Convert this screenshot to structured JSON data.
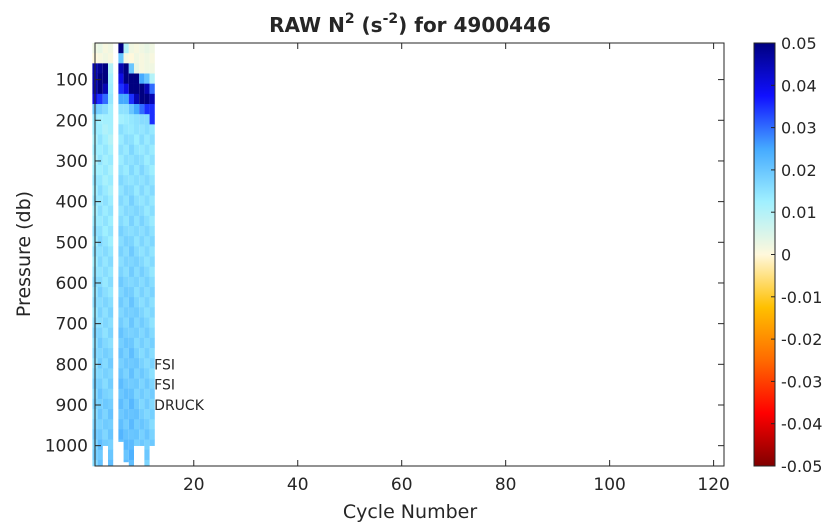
{
  "chart_data": {
    "type": "heatmap",
    "title": {
      "prefix": "RAW N",
      "sup1": "2",
      "mid": " (s",
      "sup2": "-2",
      "suffix": ") for 4900446"
    },
    "xlabel": "Cycle Number",
    "ylabel": "Pressure (db)",
    "xlim": [
      1,
      122
    ],
    "ylim": [
      1050,
      10
    ],
    "xticks": [
      20,
      40,
      60,
      80,
      100,
      120
    ],
    "yticks": [
      100,
      200,
      300,
      400,
      500,
      600,
      700,
      800,
      900,
      1000
    ],
    "colorbar": {
      "clim": [
        -0.05,
        0.05
      ],
      "ticks": [
        -0.05,
        -0.04,
        -0.03,
        -0.02,
        -0.01,
        0,
        0.01,
        0.02,
        0.03,
        0.04,
        0.05
      ],
      "tick_labels": [
        "-0.05",
        "-0.04",
        "-0.03",
        "-0.02",
        "-0.01",
        "0",
        "0.01",
        "0.02",
        "0.03",
        "0.04",
        "0.05"
      ]
    },
    "annotations": [
      {
        "text": "FSI",
        "x": 12,
        "y": 800
      },
      {
        "text": "FSI",
        "x": 12,
        "y": 850
      },
      {
        "text": "DRUCK",
        "x": 12,
        "y": 900
      }
    ],
    "grid": false,
    "cycles": [
      {
        "x": 1,
        "pmax": 1050,
        "top": [
          0.002,
          0.0,
          0.045,
          0.045,
          0.045,
          0.04,
          0.02,
          0.014
        ],
        "mid": 0.012,
        "deep": 0.018
      },
      {
        "x": 2,
        "pmax": 1050,
        "top": [
          0.003,
          0.001,
          0.048,
          0.05,
          0.05,
          0.035,
          0.018,
          0.012
        ],
        "mid": 0.013,
        "deep": 0.02
      },
      {
        "x": 3,
        "pmax": 1000,
        "top": [
          0.001,
          0.002,
          0.05,
          0.05,
          0.045,
          0.03,
          0.016,
          0.012
        ],
        "mid": 0.012,
        "deep": 0.019
      },
      {
        "x": 4,
        "pmax": 1050,
        "top": [
          0.002,
          0.001,
          0.01,
          0.012,
          0.013,
          0.014,
          0.012,
          0.012
        ],
        "mid": 0.011,
        "deep": 0.02
      },
      {
        "x": 6,
        "pmax": 990,
        "top": [
          0.05,
          0.02,
          0.045,
          0.04,
          0.035,
          0.025,
          0.015,
          0.012
        ],
        "mid": 0.014,
        "deep": 0.022
      },
      {
        "x": 7,
        "pmax": 1040,
        "top": [
          0.01,
          0.001,
          0.05,
          0.05,
          0.04,
          0.025,
          0.015,
          0.013
        ],
        "mid": 0.014,
        "deep": 0.021
      },
      {
        "x": 8,
        "pmax": 1050,
        "top": [
          0.002,
          0.0,
          0.02,
          0.05,
          0.05,
          0.035,
          0.02,
          0.014
        ],
        "mid": 0.015,
        "deep": 0.022
      },
      {
        "x": 9,
        "pmax": 1000,
        "top": [
          0.001,
          0.002,
          0.003,
          0.05,
          0.05,
          0.045,
          0.025,
          0.015
        ],
        "mid": 0.014,
        "deep": 0.02
      },
      {
        "x": 10,
        "pmax": 1000,
        "top": [
          0.002,
          0.001,
          0.001,
          0.025,
          0.05,
          0.05,
          0.03,
          0.016
        ],
        "mid": 0.015,
        "deep": 0.019
      },
      {
        "x": 11,
        "pmax": 1050,
        "top": [
          0.003,
          0.002,
          0.002,
          0.02,
          0.045,
          0.05,
          0.035,
          0.016
        ],
        "mid": 0.014,
        "deep": 0.019
      },
      {
        "x": 12,
        "pmax": 1000,
        "top": [
          0.002,
          0.001,
          0.002,
          0.01,
          0.03,
          0.045,
          0.035,
          0.035
        ],
        "mid": 0.014,
        "deep": 0.018
      }
    ]
  }
}
